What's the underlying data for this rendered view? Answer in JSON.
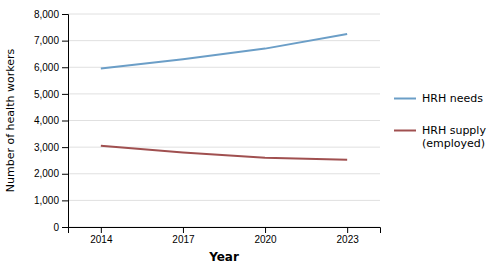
{
  "chart_data": {
    "type": "line",
    "x": [
      2014,
      2017,
      2020,
      2023
    ],
    "series": [
      {
        "name": "HRH needs",
        "color": "#6B9EC7",
        "values": [
          5950,
          6300,
          6700,
          7250
        ]
      },
      {
        "name": "HRH supply\n(employed)",
        "color": "#A05050",
        "values": [
          3050,
          2800,
          2600,
          2530
        ]
      }
    ],
    "xlabel": "Year",
    "ylabel": "Number of health workers",
    "xlim": [
      2012.8,
      2024.2
    ],
    "xticks": [
      2014,
      2017,
      2020,
      2023
    ],
    "ylim": [
      0,
      8000
    ],
    "yticks": [
      0,
      {
        "value": 1000,
        "label": "1,000"
      },
      {
        "value": 2000,
        "label": "2,000"
      },
      {
        "value": 3000,
        "label": "3,000"
      },
      {
        "value": 4000,
        "label": "4,000"
      },
      {
        "value": 5000,
        "label": "5,000"
      },
      {
        "value": 6000,
        "label": "6,000"
      },
      {
        "value": 7000,
        "label": "7,000"
      },
      {
        "value": 8000,
        "label": "8,000"
      }
    ],
    "grid": true,
    "legend": "right"
  }
}
